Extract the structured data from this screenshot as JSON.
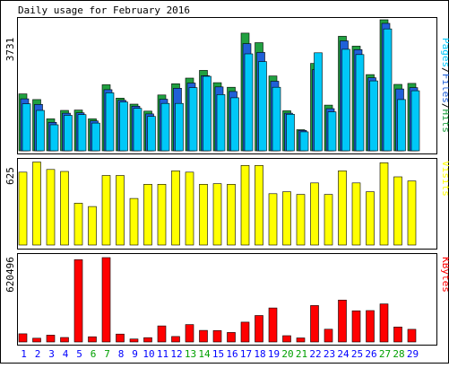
{
  "chart_data": {
    "type": "bar",
    "title": "Daily usage for February 2016",
    "categories": [
      "1",
      "2",
      "3",
      "4",
      "5",
      "6",
      "7",
      "8",
      "9",
      "10",
      "11",
      "12",
      "13",
      "14",
      "15",
      "16",
      "17",
      "18",
      "19",
      "20",
      "21",
      "22",
      "23",
      "24",
      "25",
      "26",
      "27",
      "28",
      "29"
    ],
    "weekend_days": [
      "6",
      "7",
      "13",
      "14",
      "20",
      "21",
      "27",
      "28"
    ],
    "panels": [
      {
        "id": "hits",
        "label_parts": [
          "Pages",
          "Files",
          "Hits"
        ],
        "ymax_label": "3731",
        "ymax": 3731,
        "series": [
          {
            "name": "Hits",
            "color": "#20a040",
            "values": [
              1620,
              1460,
              910,
              1150,
              1160,
              910,
              1880,
              1500,
              1330,
              1130,
              1590,
              1910,
              2070,
              2290,
              1940,
              1810,
              3350,
              3080,
              2130,
              1140,
              600,
              2490,
              1300,
              3260,
              2980,
              2170,
              3731,
              1890,
              1920
            ]
          },
          {
            "name": "Files",
            "color": "#2060d8",
            "values": [
              1480,
              1320,
              810,
              1070,
              1080,
              850,
              1740,
              1440,
              1270,
              1050,
              1470,
              1780,
              1930,
              2140,
              1820,
              1690,
              3050,
              2800,
              1980,
              1070,
              580,
              2310,
              1200,
              3130,
              2880,
              2080,
              3630,
              1760,
              1800
            ]
          },
          {
            "name": "Pages",
            "color": "#00c8f8",
            "values": [
              1340,
              1150,
              740,
              1010,
              1030,
              790,
              1650,
              1390,
              1210,
              980,
              1350,
              1350,
              1800,
              2120,
              1600,
              1510,
              2760,
              2540,
              1810,
              1040,
              540,
              2790,
              1110,
              2890,
              2740,
              1990,
              3470,
              1460,
              1710
            ]
          }
        ]
      },
      {
        "id": "visits",
        "label_parts": [
          "Visits"
        ],
        "ymax_label": "625",
        "ymax": 625,
        "series": [
          {
            "name": "Visits",
            "color": "#ffff00",
            "values": [
              540,
              615,
              560,
              545,
              310,
              285,
              515,
              515,
              345,
              450,
              450,
              550,
              540,
              450,
              455,
              450,
              590,
              590,
              380,
              395,
              375,
              460,
              375,
              550,
              460,
              395,
              610,
              505,
              475
            ]
          }
        ]
      },
      {
        "id": "kbytes",
        "label_parts": [
          "KBytes"
        ],
        "ymax_label": "620496",
        "ymax": 620496,
        "series": [
          {
            "name": "KBytes",
            "color": "#ff0000",
            "values": [
              60000,
              28000,
              50000,
              33000,
              605000,
              38000,
              620496,
              58000,
              22000,
              32000,
              118000,
              40000,
              128000,
              85000,
              84000,
              70000,
              146000,
              195000,
              250000,
              46000,
              30000,
              268000,
              94000,
              308000,
              229000,
              231000,
              280000,
              110000,
              93000
            ]
          }
        ]
      }
    ]
  },
  "colors": {
    "background": "#ffffff",
    "panel_border": "#000000",
    "frame_border": "#000000",
    "weekday_label": "#0000ff",
    "weekend_label": "#00a000",
    "ytick_label": "#000000",
    "label_pages": "#00c8f8",
    "label_files": "#2060d8",
    "label_hits": "#20a040",
    "label_visits": "#ffff00",
    "label_kbytes": "#ff0000",
    "label_separator": "#000000"
  },
  "legend_placement": "right-vertical",
  "grid": false
}
